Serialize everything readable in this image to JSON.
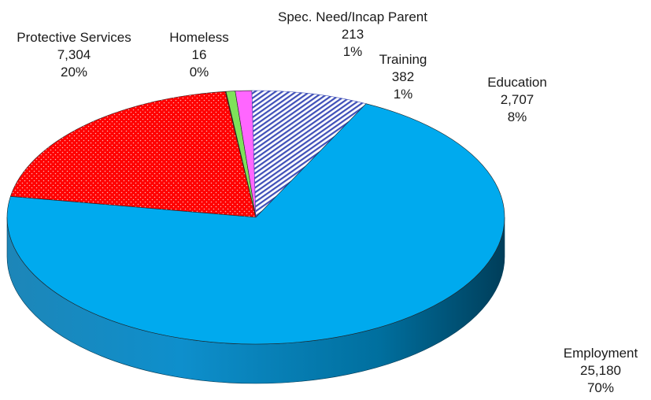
{
  "chart_data": {
    "type": "pie",
    "title": "",
    "style": "3d",
    "start_angle_deg": 170.5,
    "series": [
      {
        "name": "",
        "slices": [
          {
            "label": "Protective Services",
            "value": 7304,
            "percent": "20%",
            "value_text": "7,304",
            "color": "#ff0000",
            "pattern": "dots"
          },
          {
            "label": "Homeless",
            "value": 16,
            "percent": "0%",
            "value_text": "16",
            "color": "#cc0000",
            "pattern": "none"
          },
          {
            "label": "Spec. Need/Incap Parent",
            "value": 213,
            "percent": "1%",
            "value_text": "213",
            "color": "#7ee25a",
            "pattern": "none"
          },
          {
            "label": "Training",
            "value": 382,
            "percent": "1%",
            "value_text": "382",
            "color": "#ff66ff",
            "pattern": "none"
          },
          {
            "label": "Education",
            "value": 2707,
            "percent": "8%",
            "value_text": "2,707",
            "color": "#2b3a9e",
            "pattern": "stripes"
          },
          {
            "label": "Employment",
            "value": 25180,
            "percent": "70%",
            "value_text": "25,180",
            "color": "#00aaee",
            "pattern": "none"
          }
        ]
      }
    ]
  }
}
